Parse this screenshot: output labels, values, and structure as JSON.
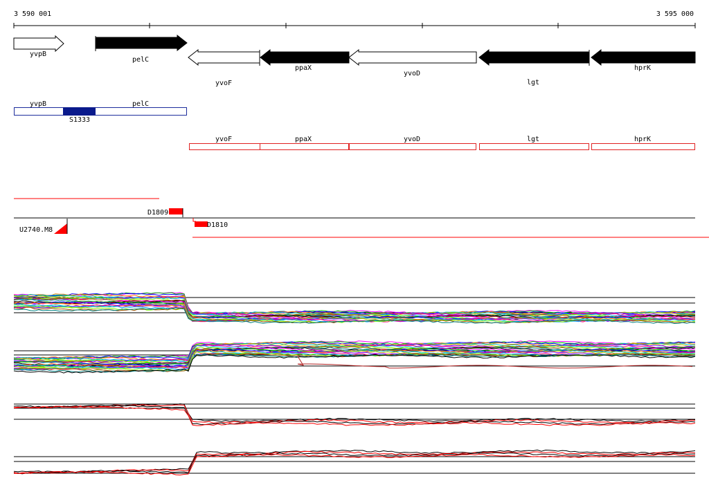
{
  "coordinates": {
    "start_label": "3 590 001",
    "end_label": "3 595 000"
  },
  "genes": [
    {
      "name": "yvpB",
      "strand": "+",
      "fill": "white"
    },
    {
      "name": "pelC",
      "strand": "+",
      "fill": "black"
    },
    {
      "name": "yvoF",
      "strand": "-",
      "fill": "white"
    },
    {
      "name": "ppaX",
      "strand": "-",
      "fill": "black"
    },
    {
      "name": "yvoD",
      "strand": "-",
      "fill": "white"
    },
    {
      "name": "lgt",
      "strand": "-",
      "fill": "black"
    },
    {
      "name": "hprK",
      "strand": "-",
      "fill": "black"
    }
  ],
  "operons": {
    "forward": {
      "genes": [
        "yvpB",
        "pelC"
      ],
      "color": "#1c2c9c",
      "segment_label": "S1333"
    },
    "reverse": {
      "genes": [
        "yvoF",
        "ppaX",
        "yvoD",
        "lgt",
        "hprK"
      ],
      "color": "#e02020"
    }
  },
  "features": {
    "d1809": "D1809",
    "d1810": "D1810",
    "u2740": "U2740.M8"
  },
  "colors": {
    "accent_red": "#ff0000",
    "operon_blue": "#1c2c9c",
    "trace_palette": [
      "#ff00ff",
      "#00c000",
      "#0000ff",
      "#ff8000",
      "#00c0c0",
      "#c0c000",
      "#8000ff",
      "#ff0080",
      "#00a0ff",
      "#80ff00",
      "#a05000",
      "#008080"
    ]
  }
}
